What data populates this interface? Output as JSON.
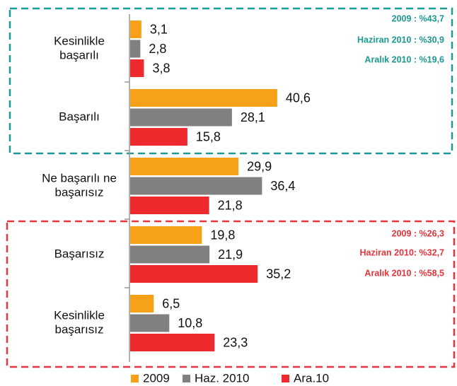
{
  "chart_data": {
    "type": "bar",
    "orientation": "horizontal",
    "categories": [
      [
        "Kesinlikle",
        "başarılı"
      ],
      [
        "Başarılı"
      ],
      [
        "Ne başarılı ne",
        "başarısız"
      ],
      [
        "Başarısız"
      ],
      [
        "Kesinlikle",
        "başarısız"
      ]
    ],
    "series": [
      {
        "name": "2009",
        "color": "#f7a11a",
        "values": [
          3.1,
          40.6,
          29.9,
          19.8,
          6.5
        ],
        "value_labels": [
          "3,1",
          "40,6",
          "29,9",
          "19,8",
          "6,5"
        ]
      },
      {
        "name": "Haz. 2010",
        "color": "#808080",
        "values": [
          2.8,
          28.1,
          36.4,
          21.9,
          10.8
        ],
        "value_labels": [
          "2,8",
          "28,1",
          "36,4",
          "21,9",
          "10,8"
        ]
      },
      {
        "name": "Ara.10",
        "color": "#ee2a2f",
        "values": [
          3.8,
          15.8,
          21.8,
          35.2,
          23.3
        ],
        "value_labels": [
          "3,8",
          "15,8",
          "21,8",
          "35,2",
          "23,3"
        ]
      }
    ],
    "annotations": [
      {
        "color": "#1a9a92",
        "lines": [
          "2009 : %43,7",
          "Haziran 2010 : %30,9",
          "Aralık 2010 : %19,6"
        ]
      },
      {
        "color": "#e8333a",
        "lines": [
          "2009 : %26,3",
          "Haziran 2010: %32,7",
          "Aralık 2010 : %58,5"
        ]
      }
    ],
    "legend": "bottom"
  }
}
